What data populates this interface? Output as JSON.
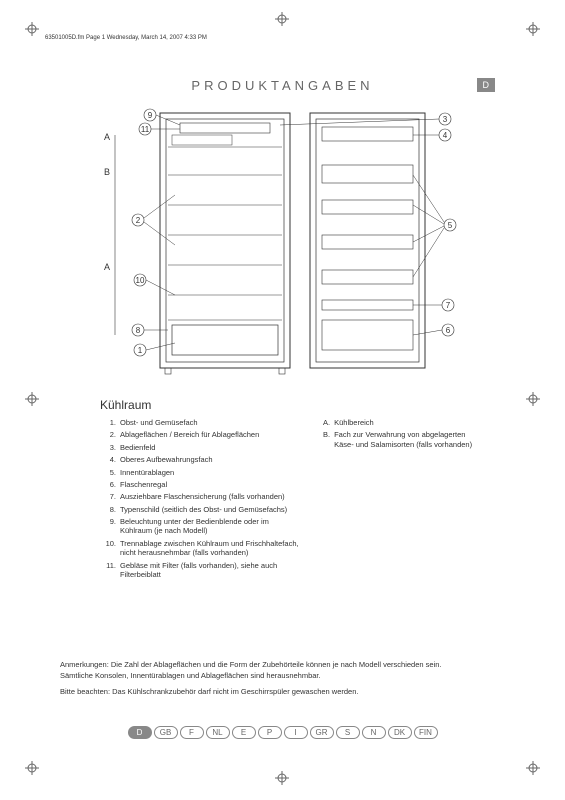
{
  "meta": {
    "header_line": "63501005D.fm Page 1  Wednesday, March 14, 2007  4:33 PM"
  },
  "title": "PRODUKTANGABEN",
  "lang_badge": "D",
  "diagram": {
    "callouts_left": [
      "9",
      "11",
      "A",
      "B",
      "2",
      "A",
      "10",
      "8",
      "1"
    ],
    "callouts_right": [
      "3",
      "4",
      "5",
      "7",
      "6"
    ]
  },
  "subheading": "Kühlraum",
  "numbered": [
    {
      "n": "1.",
      "t": "Obst- und Gemüsefach"
    },
    {
      "n": "2.",
      "t": "Ablageflächen / Bereich für Ablageflächen"
    },
    {
      "n": "3.",
      "t": "Bedienfeld"
    },
    {
      "n": "4.",
      "t": "Oberes Aufbewahrungsfach"
    },
    {
      "n": "5.",
      "t": "Innentürablagen"
    },
    {
      "n": "6.",
      "t": "Flaschenregal"
    },
    {
      "n": "7.",
      "t": "Ausziehbare Flaschensicherung (falls vorhanden)"
    },
    {
      "n": "8.",
      "t": "Typenschild (seitlich des Obst- und Gemüsefachs)"
    },
    {
      "n": "9.",
      "t": "Beleuchtung unter der Bedienblende oder im Kühlraum (je nach Modell)"
    },
    {
      "n": "10.",
      "t": "Trennablage zwischen Kühlraum und Frischhaltefach, nicht herausnehmbar (falls vorhanden)"
    },
    {
      "n": "11.",
      "t": "Gebläse mit Filter (falls vorhanden), siehe auch Filterbeiblatt"
    }
  ],
  "lettered": [
    {
      "n": "A.",
      "t": "Kühlbereich"
    },
    {
      "n": "B.",
      "t": "Fach zur Verwahrung von abgelagerten Käse- und Salamisorten (falls vorhanden)"
    }
  ],
  "notes": {
    "line1": "Anmerkungen: Die Zahl der Ablageflächen und die Form der Zubehörteile können je nach Modell verschieden sein.",
    "line2": "Sämtliche Konsolen, Innentürablagen und Ablageflächen sind herausnehmbar.",
    "line3": "Bitte beachten: Das Kühlschrankzubehör darf nicht im Geschirrspüler gewaschen werden."
  },
  "langs": [
    "D",
    "GB",
    "F",
    "NL",
    "E",
    "P",
    "I",
    "GR",
    "S",
    "N",
    "DK",
    "FIN"
  ],
  "active_lang_index": 0
}
